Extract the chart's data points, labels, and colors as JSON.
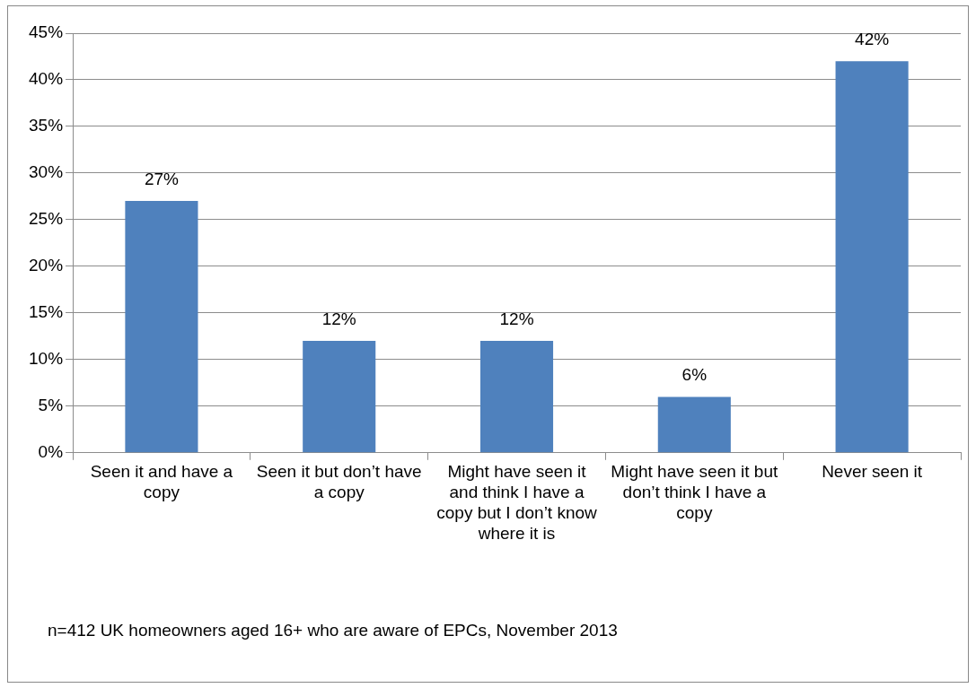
{
  "chart_data": {
    "type": "bar",
    "categories": [
      "Seen it and have a copy",
      "Seen it but don’t have a copy",
      "Might have seen it and think I have a copy but I don’t know where it is",
      "Might have seen it but don’t think I have a copy",
      "Never seen it"
    ],
    "values": [
      27,
      12,
      12,
      6,
      42
    ],
    "value_labels": [
      "27%",
      "12%",
      "12%",
      "6%",
      "42%"
    ],
    "color": "#4f81bd",
    "ylim": [
      0,
      45
    ],
    "yticks": [
      {
        "value": 0,
        "label": "0%"
      },
      {
        "value": 5,
        "label": "5%"
      },
      {
        "value": 10,
        "label": "10%"
      },
      {
        "value": 15,
        "label": "15%"
      },
      {
        "value": 20,
        "label": "20%"
      },
      {
        "value": 25,
        "label": "25%"
      },
      {
        "value": 30,
        "label": "30%"
      },
      {
        "value": 35,
        "label": "35%"
      },
      {
        "value": 40,
        "label": "40%"
      },
      {
        "value": 45,
        "label": "45%"
      }
    ],
    "grid": "y",
    "annotations": [
      "n=412 UK homeowners aged 16+ who are aware of EPCs, November 2013"
    ]
  }
}
